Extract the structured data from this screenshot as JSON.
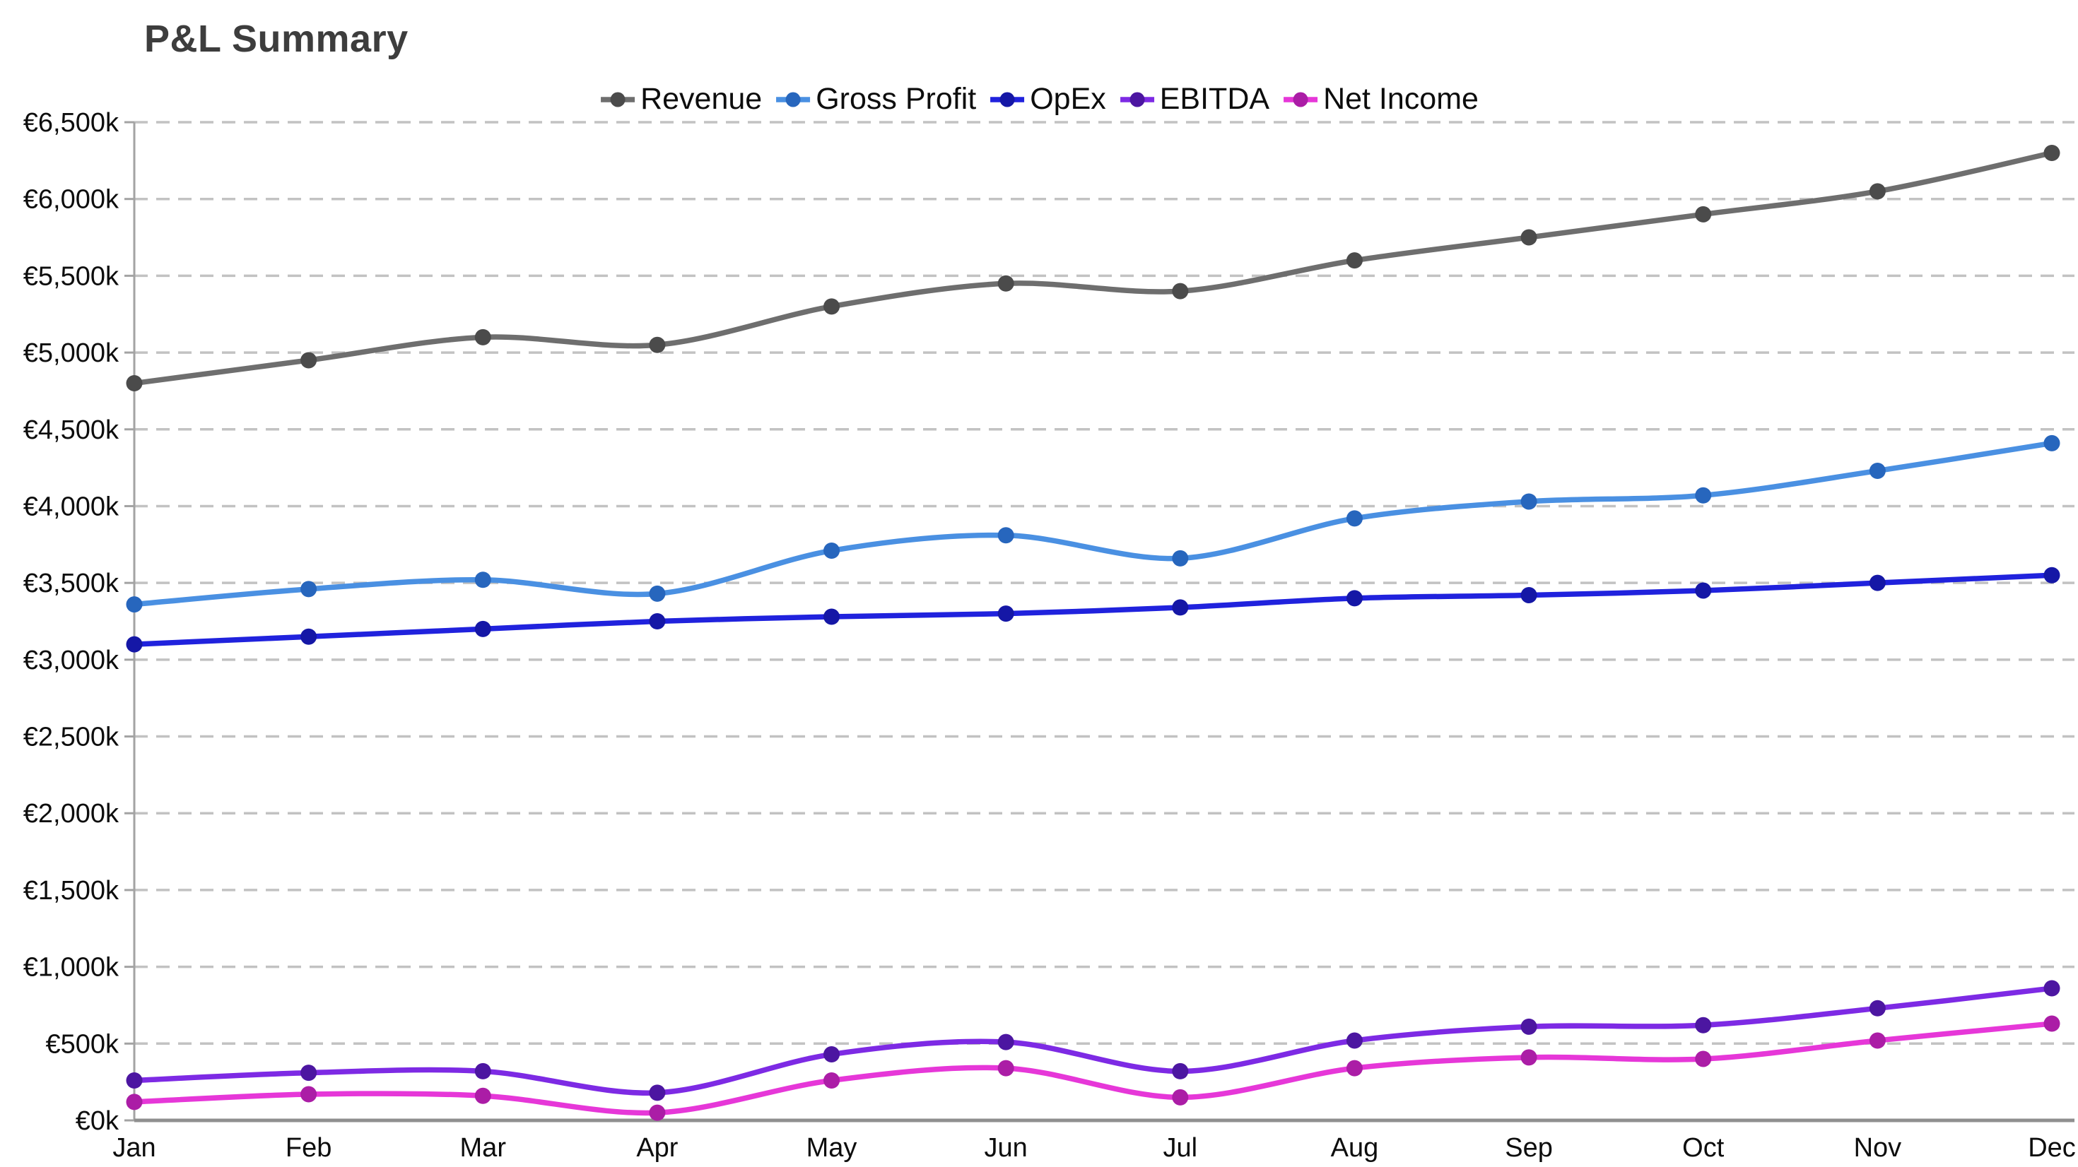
{
  "chart_data": {
    "type": "line",
    "title": "P&L Summary",
    "categories": [
      "Jan",
      "Feb",
      "Mar",
      "Apr",
      "May",
      "Jun",
      "Jul",
      "Aug",
      "Sep",
      "Oct",
      "Nov",
      "Dec"
    ],
    "series": [
      {
        "name": "Revenue",
        "color": "#6e6e6e",
        "point_color": "#4b4b4b",
        "values": [
          4800,
          4950,
          5100,
          5050,
          5300,
          5450,
          5400,
          5600,
          5750,
          5900,
          6050,
          6300
        ]
      },
      {
        "name": "Gross Profit",
        "color": "#4a90e2",
        "point_color": "#2766bd",
        "values": [
          3360,
          3460,
          3520,
          3430,
          3710,
          3810,
          3660,
          3920,
          4030,
          4070,
          4230,
          4410
        ]
      },
      {
        "name": "OpEx",
        "color": "#2022dd",
        "point_color": "#1517a6",
        "values": [
          3100,
          3150,
          3200,
          3250,
          3280,
          3300,
          3340,
          3400,
          3420,
          3450,
          3500,
          3550
        ]
      },
      {
        "name": "EBITDA",
        "color": "#7d2ae4",
        "point_color": "#4c16a1",
        "values": [
          260,
          310,
          320,
          180,
          430,
          510,
          320,
          520,
          610,
          620,
          730,
          860
        ]
      },
      {
        "name": "Net Income",
        "color": "#e637d8",
        "point_color": "#ab1da6",
        "values": [
          120,
          170,
          160,
          50,
          260,
          340,
          150,
          340,
          410,
          400,
          520,
          630
        ]
      }
    ],
    "xlabel": "",
    "ylabel": "",
    "ylim": [
      0,
      6500
    ],
    "y_step": 500,
    "y_tick_labels": [
      "€0k",
      "€500k",
      "€1,000k",
      "€1,500k",
      "€2,000k",
      "€2,500k",
      "€3,000k",
      "€3,500k",
      "€4,000k",
      "€4,500k",
      "€5,000k",
      "€5,500k",
      "€6,000k",
      "€6,500k"
    ],
    "value_prefix": "€",
    "value_suffix": "k",
    "legend_position": "top",
    "grid": "horizontal-dashed",
    "colors": {
      "title_text": "#3d3d3d",
      "tick_text": "#0d0d0d",
      "gridline": "#c2c2c2",
      "x_axis_line": "#8f8f8f",
      "y_axis_line": "#a3a3a3"
    }
  }
}
